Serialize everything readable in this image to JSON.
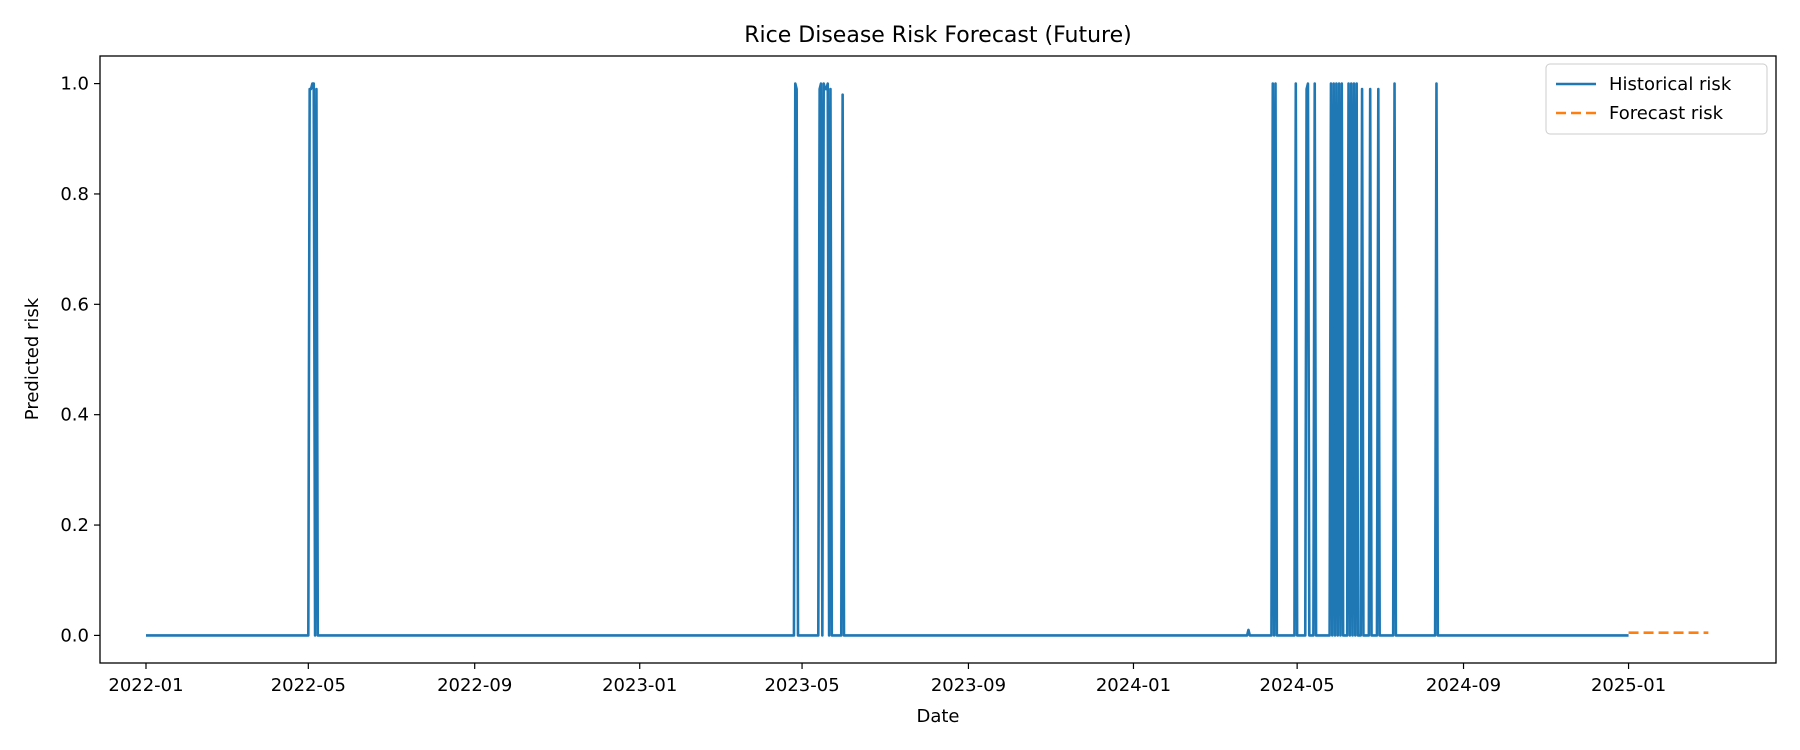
{
  "chart_data": {
    "type": "line",
    "title": "Rice Disease Risk Forecast (Future)",
    "xlabel": "Date",
    "ylabel": "Predicted risk",
    "x_type": "date",
    "xlim": [
      "2021-11-28",
      "2025-04-20"
    ],
    "ylim": [
      -0.05,
      1.05
    ],
    "x_ticks": [
      "2022-01",
      "2022-05",
      "2022-09",
      "2023-01",
      "2023-05",
      "2023-09",
      "2024-01",
      "2024-05",
      "2024-09",
      "2025-01"
    ],
    "y_ticks": [
      0.0,
      0.2,
      0.4,
      0.6,
      0.8,
      1.0
    ],
    "y_tick_labels": [
      "0.0",
      "0.2",
      "0.4",
      "0.6",
      "0.8",
      "1.0"
    ],
    "grid": false,
    "legend_position": "top-right",
    "series": [
      {
        "name": "Historical risk",
        "color": "#1f77b4",
        "style": "solid",
        "points": [
          [
            "2022-01-01",
            0
          ],
          [
            "2022-05-01",
            0
          ],
          [
            "2022-05-02",
            0.99
          ],
          [
            "2022-05-03",
            0.99
          ],
          [
            "2022-05-04",
            1.0
          ],
          [
            "2022-05-05",
            1.0
          ],
          [
            "2022-05-06",
            0
          ],
          [
            "2022-05-07",
            0.99
          ],
          [
            "2022-05-08",
            0
          ],
          [
            "2023-04-25",
            0
          ],
          [
            "2023-04-26",
            1.0
          ],
          [
            "2023-04-27",
            0.99
          ],
          [
            "2023-04-28",
            0
          ],
          [
            "2023-05-13",
            0
          ],
          [
            "2023-05-14",
            0.99
          ],
          [
            "2023-05-15",
            1.0
          ],
          [
            "2023-05-16",
            0
          ],
          [
            "2023-05-17",
            1.0
          ],
          [
            "2023-05-18",
            0.99
          ],
          [
            "2023-05-19",
            0.99
          ],
          [
            "2023-05-20",
            1.0
          ],
          [
            "2023-05-21",
            0
          ],
          [
            "2023-05-22",
            0.99
          ],
          [
            "2023-05-23",
            0
          ],
          [
            "2023-05-30",
            0
          ],
          [
            "2023-05-31",
            0.98
          ],
          [
            "2023-06-01",
            0
          ],
          [
            "2024-03-25",
            0
          ],
          [
            "2024-03-26",
            0.01
          ],
          [
            "2024-03-27",
            0
          ],
          [
            "2024-04-12",
            0
          ],
          [
            "2024-04-13",
            1.0
          ],
          [
            "2024-04-14",
            0
          ],
          [
            "2024-04-15",
            1.0
          ],
          [
            "2024-04-16",
            0
          ],
          [
            "2024-04-29",
            0
          ],
          [
            "2024-04-30",
            1.0
          ],
          [
            "2024-05-01",
            0
          ],
          [
            "2024-05-07",
            0
          ],
          [
            "2024-05-08",
            0.99
          ],
          [
            "2024-05-09",
            1.0
          ],
          [
            "2024-05-10",
            0
          ],
          [
            "2024-05-13",
            0
          ],
          [
            "2024-05-14",
            1.0
          ],
          [
            "2024-05-15",
            0
          ],
          [
            "2024-05-25",
            0
          ],
          [
            "2024-05-26",
            1.0
          ],
          [
            "2024-05-27",
            0
          ],
          [
            "2024-05-28",
            1.0
          ],
          [
            "2024-05-29",
            0
          ],
          [
            "2024-05-30",
            1.0
          ],
          [
            "2024-05-31",
            0
          ],
          [
            "2024-06-01",
            1.0
          ],
          [
            "2024-06-02",
            0
          ],
          [
            "2024-06-03",
            1.0
          ],
          [
            "2024-06-04",
            0
          ],
          [
            "2024-06-07",
            0
          ],
          [
            "2024-06-08",
            1.0
          ],
          [
            "2024-06-09",
            0
          ],
          [
            "2024-06-10",
            1.0
          ],
          [
            "2024-06-11",
            0
          ],
          [
            "2024-06-12",
            1.0
          ],
          [
            "2024-06-13",
            0
          ],
          [
            "2024-06-14",
            1.0
          ],
          [
            "2024-06-15",
            0
          ],
          [
            "2024-06-17",
            0
          ],
          [
            "2024-06-18",
            0.99
          ],
          [
            "2024-06-19",
            0
          ],
          [
            "2024-06-23",
            0
          ],
          [
            "2024-06-24",
            0.99
          ],
          [
            "2024-06-25",
            0
          ],
          [
            "2024-06-29",
            0
          ],
          [
            "2024-06-30",
            0.99
          ],
          [
            "2024-07-01",
            0
          ],
          [
            "2024-07-11",
            0
          ],
          [
            "2024-07-12",
            1.0
          ],
          [
            "2024-07-13",
            0
          ],
          [
            "2024-08-11",
            0
          ],
          [
            "2024-08-12",
            1.0
          ],
          [
            "2024-08-13",
            0
          ],
          [
            "2025-01-01",
            0
          ]
        ]
      },
      {
        "name": "Forecast risk",
        "color": "#ff7f0e",
        "style": "dashed",
        "points": [
          [
            "2025-01-01",
            0.005
          ],
          [
            "2025-03-01",
            0.005
          ]
        ]
      }
    ]
  }
}
